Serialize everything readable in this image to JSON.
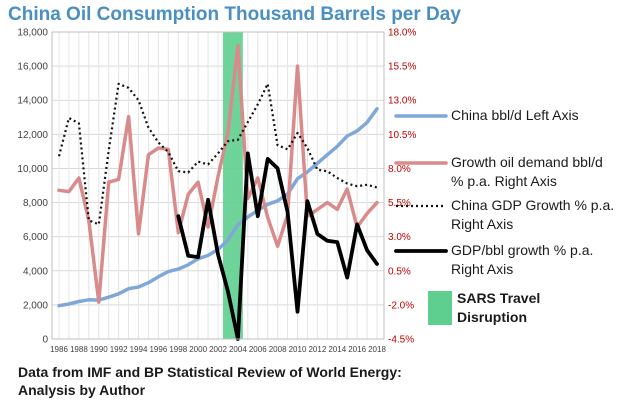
{
  "chart_data": {
    "type": "line",
    "title": "China Oil Consumption Thousand Barrels per Day",
    "x_range": [
      1986,
      2018
    ],
    "x_ticks": [
      "1986",
      "1988",
      "1990",
      "1992",
      "1994",
      "1996",
      "1998",
      "2000",
      "2002",
      "2004",
      "2006",
      "2008",
      "2010",
      "2012",
      "2014",
      "2016",
      "2018"
    ],
    "left_axis": {
      "ylim": [
        0,
        18000
      ],
      "ticks": [
        "0",
        "2,000",
        "4,000",
        "6,000",
        "8,000",
        "10,000",
        "12,000",
        "14,000",
        "16,000",
        "18,000"
      ]
    },
    "right_axis": {
      "ylim": [
        -4.5,
        18.0
      ],
      "ticks": [
        "-4.5%",
        "-2.0%",
        "0.5%",
        "3.0%",
        "5.5%",
        "8.0%",
        "10.5%",
        "13.0%",
        "15.5%",
        "18.0%"
      ]
    },
    "shaded_band": {
      "label": "SARS Travel Disruption",
      "x_from": 2002.5,
      "x_to": 2004.5,
      "color": "#5fcf8f"
    },
    "series": [
      {
        "name": "China bbl/d Left Axis",
        "axis": "left",
        "color": "#7fa7d7",
        "style": "solid-thick",
        "x": [
          1986,
          1987,
          1988,
          1989,
          1990,
          1991,
          1992,
          1993,
          1994,
          1995,
          1996,
          1997,
          1998,
          1999,
          2000,
          2001,
          2002,
          2003,
          2004,
          2005,
          2006,
          2007,
          2008,
          2009,
          2010,
          2011,
          2012,
          2013,
          2014,
          2015,
          2016,
          2017,
          2018
        ],
        "values": [
          1950,
          2050,
          2200,
          2300,
          2280,
          2450,
          2650,
          2950,
          3050,
          3300,
          3650,
          3950,
          4100,
          4350,
          4700,
          4900,
          5250,
          5800,
          6700,
          7150,
          7550,
          7900,
          8100,
          8500,
          9400,
          9800,
          10300,
          10800,
          11300,
          11900,
          12200,
          12700,
          13500
        ]
      },
      {
        "name": "Growth oil demand  bbl/d % p.a. Right Axis",
        "axis": "right",
        "color": "#d98a8a",
        "style": "solid-thick",
        "x": [
          1986,
          1987,
          1988,
          1989,
          1990,
          1991,
          1992,
          1993,
          1994,
          1995,
          1996,
          1997,
          1998,
          1999,
          2000,
          2001,
          2002,
          2003,
          2004,
          2005,
          2006,
          2007,
          2008,
          2009,
          2010,
          2011,
          2012,
          2013,
          2014,
          2015,
          2016,
          2017,
          2018
        ],
        "values": [
          6.4,
          6.3,
          7.3,
          4.2,
          -1.8,
          7.0,
          7.2,
          11.8,
          3.2,
          9.0,
          9.5,
          9.4,
          3.3,
          6.1,
          7.0,
          3.7,
          7.4,
          10.6,
          17.0,
          5.8,
          7.3,
          4.4,
          2.3,
          4.6,
          15.5,
          4.5,
          5.0,
          5.5,
          5.0,
          6.5,
          3.7,
          4.7,
          5.5
        ]
      },
      {
        "name": "China GDP Growth % p.a. Right Axis",
        "axis": "right",
        "color": "#111111",
        "style": "dotted",
        "x": [
          1986,
          1987,
          1988,
          1989,
          1990,
          1991,
          1992,
          1993,
          1994,
          1995,
          1996,
          1997,
          1998,
          1999,
          2000,
          2001,
          2002,
          2003,
          2004,
          2005,
          2006,
          2007,
          2008,
          2009,
          2010,
          2011,
          2012,
          2013,
          2014,
          2015,
          2016,
          2017,
          2018
        ],
        "values": [
          8.9,
          11.7,
          11.3,
          4.2,
          3.9,
          9.3,
          14.2,
          13.9,
          13.0,
          11.0,
          9.9,
          9.2,
          7.8,
          7.7,
          8.5,
          8.3,
          9.1,
          10.0,
          10.1,
          11.4,
          12.7,
          14.2,
          9.7,
          9.4,
          10.6,
          9.5,
          7.9,
          7.8,
          7.3,
          6.9,
          6.7,
          6.8,
          6.6
        ]
      },
      {
        "name": "GDP/bbl growth % p.a. Right Axis",
        "axis": "right",
        "color": "#000000",
        "style": "solid-heavy",
        "x": [
          1998,
          1999,
          2000,
          2001,
          2002,
          2003,
          2004,
          2005,
          2006,
          2007,
          2008,
          2009,
          2010,
          2011,
          2012,
          2013,
          2014,
          2015,
          2016,
          2017,
          2018
        ],
        "values": [
          4.5,
          1.6,
          1.5,
          5.7,
          1.7,
          -1.0,
          -4.5,
          9.1,
          4.5,
          8.7,
          8.0,
          4.8,
          -2.5,
          5.6,
          3.2,
          2.7,
          2.6,
          0.0,
          3.9,
          2.0,
          1.0
        ]
      }
    ],
    "legend_position": "right"
  },
  "legend": {
    "china_bbl": "China bbl/d Left Axis",
    "growth_oil_line1": "Growth oil demand  bbl/d",
    "growth_oil_line2": "% p.a. Right Axis",
    "gdp_growth_line1": "China GDP Growth % p.a.",
    "gdp_growth_line2": "Right Axis",
    "gdp_bbl_line1": "GDP/bbl growth % p.a.",
    "gdp_bbl_line2": "Right Axis",
    "sars_line1": "SARS Travel",
    "sars_line2": "Disruption"
  },
  "footer": {
    "line1": "Data from IMF and BP Statistical Review of World Energy:",
    "line2": "Analysis by Author"
  }
}
